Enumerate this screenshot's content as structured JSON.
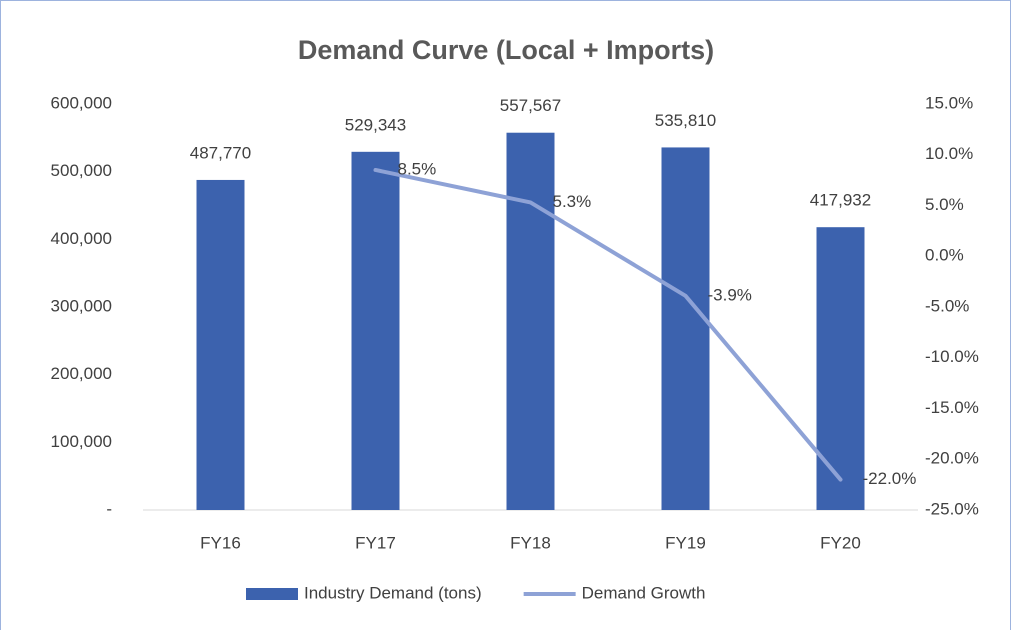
{
  "chart_data": {
    "type": "bar",
    "title": "Demand Curve (Local + Imports)",
    "categories": [
      "FY16",
      "FY17",
      "FY18",
      "FY19",
      "FY20"
    ],
    "series": [
      {
        "name": "Industry Demand (tons)",
        "type": "bar",
        "color": "#3c62ae",
        "values": [
          487770,
          529343,
          557567,
          535810,
          417932
        ],
        "value_labels": [
          "487,770",
          "529,343",
          "557,567",
          "535,810",
          "417,932"
        ]
      },
      {
        "name": "Demand Growth",
        "type": "line",
        "axis": "y2",
        "color": "#8ea2d6",
        "values": [
          null,
          8.5,
          5.3,
          -3.9,
          -22.0
        ],
        "value_labels": [
          null,
          "8.5%",
          "5.3%",
          "-3.9%",
          "-22.0%"
        ]
      }
    ],
    "ylim": [
      0,
      600000
    ],
    "yticks": [
      {
        "value": 0,
        "label": "-"
      },
      {
        "value": 100000,
        "label": "100,000"
      },
      {
        "value": 200000,
        "label": "200,000"
      },
      {
        "value": 300000,
        "label": "300,000"
      },
      {
        "value": 400000,
        "label": "400,000"
      },
      {
        "value": 500000,
        "label": "500,000"
      },
      {
        "value": 600000,
        "label": "600,000"
      }
    ],
    "y2lim": [
      -25,
      15
    ],
    "y2ticks": [
      {
        "value": -25,
        "label": "-25.0%"
      },
      {
        "value": -20,
        "label": "-20.0%"
      },
      {
        "value": -15,
        "label": "-15.0%"
      },
      {
        "value": -10,
        "label": "-10.0%"
      },
      {
        "value": -5,
        "label": "-5.0%"
      },
      {
        "value": 0,
        "label": "0.0%"
      },
      {
        "value": 5,
        "label": "5.0%"
      },
      {
        "value": 10,
        "label": "10.0%"
      },
      {
        "value": 15,
        "label": "15.0%"
      }
    ],
    "grid": false,
    "legend": "bottom"
  }
}
